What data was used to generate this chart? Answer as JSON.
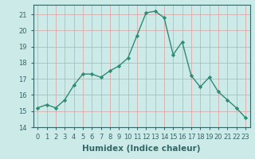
{
  "x": [
    0,
    1,
    2,
    3,
    4,
    5,
    6,
    7,
    8,
    9,
    10,
    11,
    12,
    13,
    14,
    15,
    16,
    17,
    18,
    19,
    20,
    21,
    22,
    23
  ],
  "y": [
    15.2,
    15.4,
    15.2,
    15.7,
    16.6,
    17.3,
    17.3,
    17.1,
    17.5,
    17.8,
    18.3,
    19.7,
    21.1,
    21.2,
    20.8,
    18.5,
    19.3,
    17.2,
    16.5,
    17.1,
    16.2,
    15.7,
    15.2,
    14.6
  ],
  "line_color": "#2e8b74",
  "marker": "D",
  "marker_size": 2.2,
  "line_width": 1.0,
  "bg_color": "#cceae7",
  "grid_color_major": "#d9a0a0",
  "grid_color_minor": "#d9a0a0",
  "xlabel": "Humidex (Indice chaleur)",
  "xlim": [
    -0.5,
    23.5
  ],
  "ylim": [
    14,
    21.6
  ],
  "yticks": [
    14,
    15,
    16,
    17,
    18,
    19,
    20,
    21
  ],
  "xtick_labels": [
    "0",
    "1",
    "2",
    "3",
    "4",
    "5",
    "6",
    "7",
    "8",
    "9",
    "10",
    "11",
    "12",
    "13",
    "14",
    "15",
    "16",
    "17",
    "18",
    "19",
    "20",
    "21",
    "22",
    "23"
  ],
  "tick_fontsize": 6,
  "xlabel_fontsize": 7.5,
  "spine_color": "#336666"
}
